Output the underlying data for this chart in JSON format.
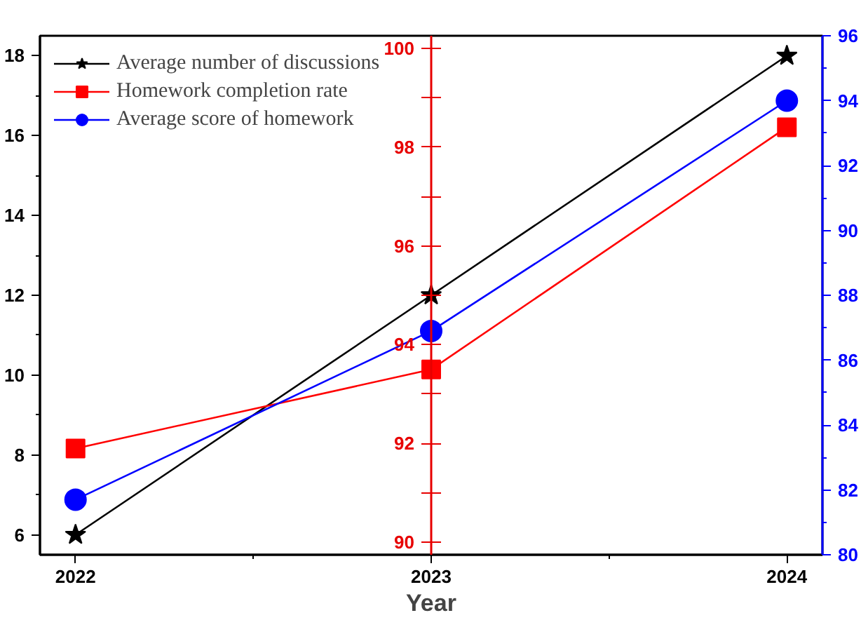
{
  "chart_data": {
    "type": "line",
    "xlabel": "Year",
    "x": [
      2022,
      2023,
      2024
    ],
    "xlim": [
      2021.9,
      2024.1
    ],
    "xticks": [
      2022,
      {
        "value": 2022.5,
        "label": null
      },
      2023,
      {
        "value": 2023.5,
        "label": null
      },
      2024
    ],
    "ylim": [
      5.5,
      18.5
    ],
    "yticks": [
      6,
      {
        "value": 7,
        "label": null
      },
      8,
      {
        "value": 9,
        "label": null
      },
      10,
      {
        "value": 11,
        "label": null
      },
      12,
      {
        "value": 13,
        "label": null
      },
      14,
      {
        "value": 15,
        "label": null
      },
      16,
      {
        "value": 17,
        "label": null
      },
      18
    ],
    "y2lim": [
      89.75,
      100.25
    ],
    "y2ticks": [
      90,
      {
        "value": 91,
        "label": null
      },
      92,
      {
        "value": 93,
        "label": null
      },
      94,
      {
        "value": 95,
        "label": null
      },
      96,
      {
        "value": 97,
        "label": null
      },
      98,
      {
        "value": 99,
        "label": null
      },
      100
    ],
    "y3lim": [
      80,
      96
    ],
    "y3ticks": [
      80,
      {
        "value": 81,
        "label": null
      },
      82,
      {
        "value": 83,
        "label": null
      },
      84,
      {
        "value": 85,
        "label": null
      },
      86,
      {
        "value": 87,
        "label": null
      },
      88,
      {
        "value": 89,
        "label": null
      },
      90,
      {
        "value": 91,
        "label": null
      },
      92,
      {
        "value": 93,
        "label": null
      },
      94,
      {
        "value": 95,
        "label": null
      },
      96
    ],
    "grid": false,
    "legend": "top left",
    "line_style": "solid",
    "series": [
      {
        "name": "Average number of discussions",
        "color": "#000000",
        "marker": "star",
        "values": [
          6,
          12,
          18
        ]
      },
      {
        "name": "Homework completion rate",
        "color": "#ff0000",
        "marker": "square",
        "axis": "y2",
        "values": [
          91.9,
          93.5,
          98.4
        ]
      },
      {
        "name": "Average score of homework",
        "color": "#0000ff",
        "marker": "circle",
        "axis": "y3",
        "values": [
          81.7,
          86.9,
          94.0
        ]
      }
    ]
  }
}
